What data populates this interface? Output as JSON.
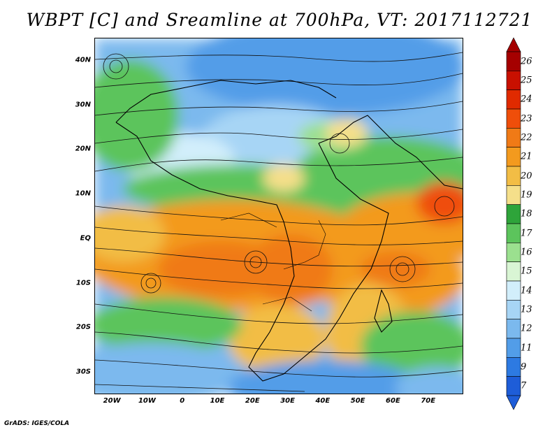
{
  "title": "WBPT [C] and Sreamline at 700hPa, VT: 2017112721",
  "credit": "GrADS: IGES/COLA",
  "map": {
    "variable": "Wet-bulb potential temperature with streamlines",
    "level": "700hPa",
    "lon_range": [
      -25,
      80
    ],
    "lat_range": [
      -35,
      45
    ],
    "lat_ticks": [
      {
        "value": 40,
        "label": "40N"
      },
      {
        "value": 30,
        "label": "30N"
      },
      {
        "value": 20,
        "label": "20N"
      },
      {
        "value": 10,
        "label": "10N"
      },
      {
        "value": 0,
        "label": "EQ"
      },
      {
        "value": -10,
        "label": "10S"
      },
      {
        "value": -20,
        "label": "20S"
      },
      {
        "value": -30,
        "label": "30S"
      }
    ],
    "lon_ticks": [
      {
        "value": -20,
        "label": "20W"
      },
      {
        "value": -10,
        "label": "10W"
      },
      {
        "value": 0,
        "label": "0"
      },
      {
        "value": 10,
        "label": "10E"
      },
      {
        "value": 20,
        "label": "20E"
      },
      {
        "value": 30,
        "label": "30E"
      },
      {
        "value": 40,
        "label": "40E"
      },
      {
        "value": 50,
        "label": "50E"
      },
      {
        "value": 60,
        "label": "60E"
      },
      {
        "value": 70,
        "label": "70E"
      }
    ]
  },
  "colorbar": {
    "levels": [
      "26",
      "25",
      "24",
      "23",
      "22",
      "21",
      "20",
      "19",
      "18",
      "17",
      "16",
      "15",
      "14",
      "13",
      "12",
      "11",
      "9",
      "7"
    ],
    "colors": [
      "#a50000",
      "#c81000",
      "#e02a00",
      "#ef4e0a",
      "#f07a16",
      "#f39a1e",
      "#f2bd45",
      "#f5df8a",
      "#2ea43a",
      "#5cc45c",
      "#9be08f",
      "#d9f5d4",
      "#d2eefb",
      "#a7d5f5",
      "#7bb9ee",
      "#529de8",
      "#2d7ae2",
      "#1e5dd8"
    ]
  }
}
